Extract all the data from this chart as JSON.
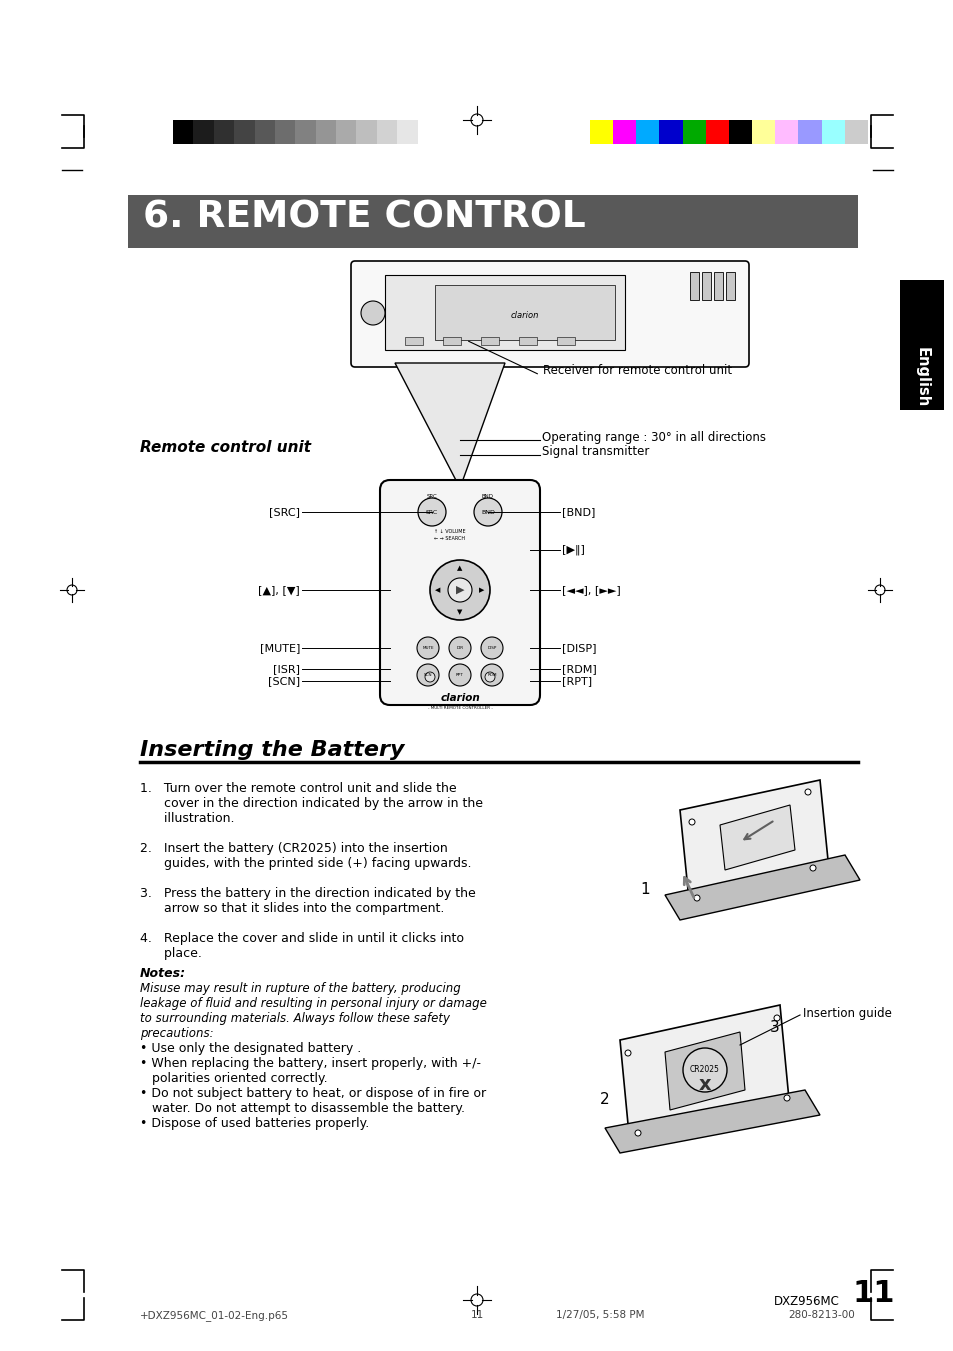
{
  "title": "6. REMOTE CONTROL",
  "title_bg": "#595959",
  "title_text_color": "#ffffff",
  "page_bg": "#ffffff",
  "section2_title": "Inserting the Battery",
  "remote_control_unit_label": "Remote control unit",
  "receiver_label": "Receiver for remote control unit",
  "operating_range_label": "Operating range : 30° in all directions",
  "signal_transmitter_label": "Signal transmitter",
  "english_tab_text": "English",
  "english_tab_bg": "#000000",
  "english_tab_text_color": "#ffffff",
  "step1": "1.   Turn over the remote control unit and slide the",
  "step1b": "      cover in the direction indicated by the arrow in the",
  "step1c": "      illustration.",
  "step2": "2.   Insert the battery (CR2025) into the insertion",
  "step2b": "      guides, with the printed side (+) facing upwards.",
  "step3": "3.   Press the battery in the direction indicated by the",
  "step3b": "      arrow so that it slides into the compartment.",
  "step4": "4.   Replace the cover and slide in until it clicks into",
  "step4b": "      place.",
  "notes_bold": "Notes:",
  "notes_line1": "Misuse may result in rupture of the battery, producing",
  "notes_line2": "leakage of fluid and resulting in personal injury or damage",
  "notes_line3": "to surrounding materials. Always follow these safety",
  "notes_line4": "precautions:",
  "bullet1": "• Use only the designated battery .",
  "bullet2a": "• When replacing the battery, insert properly, with +/-",
  "bullet2b": "   polarities oriented correctly.",
  "bullet3a": "• Do not subject battery to heat, or dispose of in fire or",
  "bullet3b": "   water. Do not attempt to disassemble the battery.",
  "bullet4": "• Dispose of used batteries properly.",
  "insertion_guide_label": "Insertion guide",
  "footer_left": "+DXZ956MC_01-02-Eng.p65",
  "footer_center": "11",
  "footer_date": "1/27/05, 5:58 PM",
  "footer_right": "280-8213-00",
  "page_number": "11",
  "model": "DXZ956MC",
  "grayscale_colors": [
    "#000000",
    "#1c1c1c",
    "#303030",
    "#444444",
    "#585858",
    "#6d6d6d",
    "#818181",
    "#959595",
    "#aaaaaa",
    "#bebebe",
    "#d2d2d2",
    "#e6e6e6",
    "#ffffff"
  ],
  "color_bar": [
    "#ffff00",
    "#ff00ff",
    "#00aaff",
    "#0000cc",
    "#00aa00",
    "#ff0000",
    "#000000",
    "#ffff99",
    "#ffbbff",
    "#9999ff",
    "#99ffff",
    "#cccccc"
  ]
}
